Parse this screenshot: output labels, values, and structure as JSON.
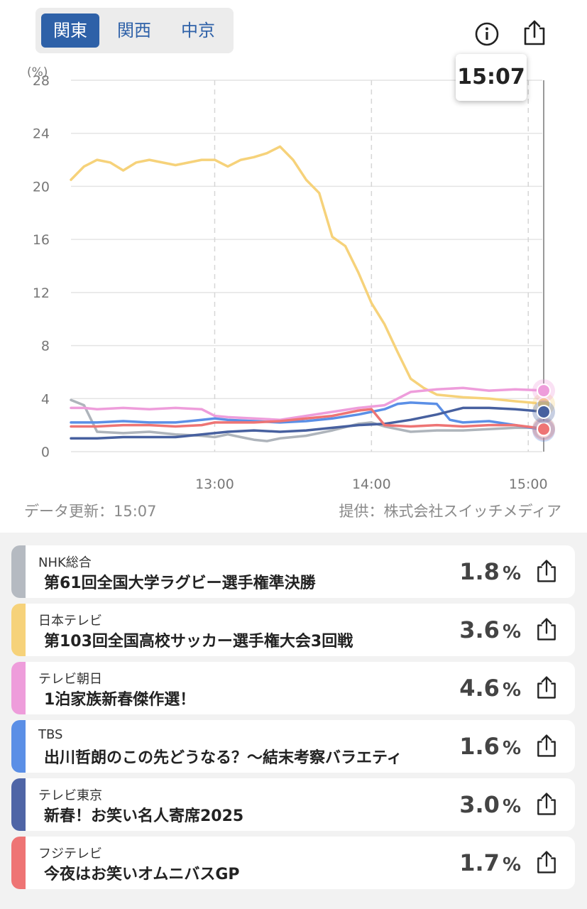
{
  "region_tabs": [
    {
      "label": "関東",
      "active": true
    },
    {
      "label": "関西",
      "active": false
    },
    {
      "label": "中京",
      "active": false
    }
  ],
  "icons": {
    "info": "info-icon",
    "share": "share-icon"
  },
  "tooltip_time": "15:07",
  "footer": {
    "update": "データ更新：15:07",
    "provider": "提供：株式会社スイッチメディア"
  },
  "chart_data": {
    "type": "line",
    "ylabel": "(%)",
    "ylim": [
      0,
      28
    ],
    "yticks": [
      "0",
      "4",
      "8",
      "12",
      "16",
      "20",
      "24",
      "28"
    ],
    "x_range": [
      "12:05",
      "15:07"
    ],
    "xticks": [
      "13:00",
      "14:00",
      "15:00"
    ],
    "cursor_time": "15:07",
    "grid": true,
    "series": [
      {
        "name": "NHK総合",
        "color": "#aeb4bb",
        "x": [
          0,
          5,
          10,
          20,
          30,
          40,
          50,
          55,
          60,
          65,
          70,
          75,
          80,
          90,
          100,
          110,
          115,
          120,
          130,
          140,
          150,
          160,
          170,
          182
        ],
        "values": [
          3.9,
          3.5,
          1.5,
          1.4,
          1.5,
          1.3,
          1.2,
          1.1,
          1.3,
          1.1,
          0.9,
          0.8,
          1.0,
          1.2,
          1.6,
          2.1,
          2.2,
          1.9,
          1.5,
          1.6,
          1.6,
          1.7,
          1.8,
          1.8
        ]
      },
      {
        "name": "日本テレビ",
        "color": "#f6d27a",
        "x": [
          0,
          5,
          10,
          15,
          20,
          25,
          30,
          40,
          50,
          55,
          60,
          65,
          70,
          75,
          80,
          85,
          90,
          95,
          100,
          105,
          110,
          115,
          120,
          125,
          130,
          135,
          140,
          150,
          160,
          170,
          182
        ],
        "values": [
          20.5,
          21.5,
          22.0,
          21.8,
          21.2,
          21.8,
          22.0,
          21.6,
          22.0,
          22.0,
          21.5,
          22.0,
          22.2,
          22.5,
          23.0,
          22.0,
          20.5,
          19.5,
          16.2,
          15.5,
          13.5,
          11.2,
          9.6,
          7.5,
          5.5,
          4.8,
          4.3,
          4.1,
          4.0,
          3.8,
          3.6
        ]
      },
      {
        "name": "テレビ朝日",
        "color": "#ee9ddb",
        "x": [
          0,
          5,
          10,
          20,
          30,
          40,
          50,
          55,
          60,
          70,
          80,
          90,
          100,
          110,
          115,
          120,
          125,
          130,
          140,
          150,
          160,
          170,
          182
        ],
        "values": [
          3.3,
          3.3,
          3.2,
          3.3,
          3.2,
          3.3,
          3.2,
          2.7,
          2.6,
          2.5,
          2.4,
          2.7,
          3.0,
          3.3,
          3.4,
          3.5,
          4.0,
          4.5,
          4.7,
          4.8,
          4.6,
          4.7,
          4.6
        ]
      },
      {
        "name": "TBS",
        "color": "#5b8fe6",
        "x": [
          0,
          10,
          20,
          30,
          40,
          50,
          55,
          60,
          70,
          80,
          90,
          100,
          110,
          120,
          125,
          130,
          140,
          145,
          150,
          160,
          170,
          182
        ],
        "values": [
          2.2,
          2.2,
          2.3,
          2.2,
          2.2,
          2.4,
          2.5,
          2.4,
          2.3,
          2.2,
          2.3,
          2.5,
          2.8,
          3.2,
          3.6,
          3.7,
          3.6,
          2.4,
          2.2,
          2.3,
          2.0,
          1.6
        ]
      },
      {
        "name": "テレビ東京",
        "color": "#47609f",
        "x": [
          0,
          10,
          20,
          30,
          40,
          50,
          55,
          60,
          70,
          80,
          90,
          100,
          110,
          120,
          130,
          140,
          150,
          160,
          170,
          182
        ],
        "values": [
          1.0,
          1.0,
          1.1,
          1.1,
          1.1,
          1.3,
          1.4,
          1.5,
          1.6,
          1.5,
          1.6,
          1.8,
          2.0,
          2.1,
          2.4,
          2.8,
          3.3,
          3.3,
          3.2,
          3.0
        ]
      },
      {
        "name": "フジテレビ",
        "color": "#ee7474",
        "x": [
          0,
          10,
          20,
          30,
          40,
          50,
          55,
          60,
          70,
          80,
          90,
          100,
          110,
          115,
          120,
          130,
          140,
          150,
          160,
          170,
          182
        ],
        "values": [
          1.9,
          1.9,
          2.0,
          2.0,
          1.9,
          2.0,
          2.2,
          2.2,
          2.2,
          2.3,
          2.5,
          2.7,
          3.1,
          3.2,
          2.0,
          1.9,
          2.0,
          1.9,
          2.0,
          2.0,
          1.7
        ]
      }
    ]
  },
  "channels": [
    {
      "channel": "NHK総合",
      "program": "第61回全国大学ラグビー選手権準決勝",
      "rating": "1.8",
      "unit": "%",
      "color": "#b5bac1"
    },
    {
      "channel": "日本テレビ",
      "program": "第103回全国高校サッカー選手権大会3回戦",
      "rating": "3.6",
      "unit": "%",
      "color": "#f6d27a"
    },
    {
      "channel": "テレビ朝日",
      "program": "1泊家族新春傑作選！",
      "rating": "4.6",
      "unit": "%",
      "color": "#ee9ddb"
    },
    {
      "channel": "TBS",
      "program": "出川哲朗のこの先どうなる？～結末考察バラエティ",
      "rating": "1.6",
      "unit": "%",
      "color": "#5b8fe6"
    },
    {
      "channel": "テレビ東京",
      "program": "新春！お笑い名人寄席2025",
      "rating": "3.0",
      "unit": "%",
      "color": "#4f65a6"
    },
    {
      "channel": "フジテレビ",
      "program": "今夜はお笑いオムニバスGP",
      "rating": "1.7",
      "unit": "%",
      "color": "#ee7474"
    }
  ]
}
